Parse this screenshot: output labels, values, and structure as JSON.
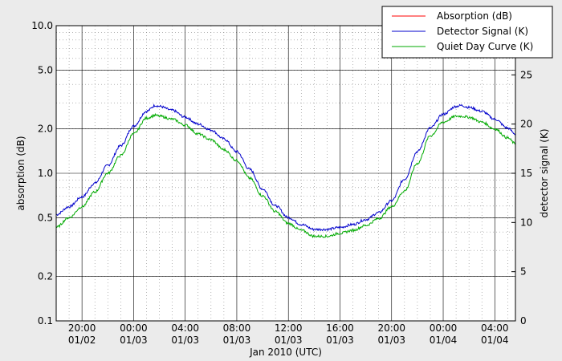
{
  "chart_data": {
    "type": "line",
    "xlabel": "Jan 2010 (UTC)",
    "ylabel_left": "absorption (dB)",
    "ylabel_right": "detector signal (K)",
    "x_ticks": [
      {
        "hour": 20,
        "time": "20:00",
        "date": "01/02"
      },
      {
        "hour": 24,
        "time": "00:00",
        "date": "01/03"
      },
      {
        "hour": 28,
        "time": "04:00",
        "date": "01/03"
      },
      {
        "hour": 32,
        "time": "08:00",
        "date": "01/03"
      },
      {
        "hour": 36,
        "time": "12:00",
        "date": "01/03"
      },
      {
        "hour": 40,
        "time": "16:00",
        "date": "01/03"
      },
      {
        "hour": 44,
        "time": "20:00",
        "date": "01/03"
      },
      {
        "hour": 48,
        "time": "00:00",
        "date": "01/04"
      },
      {
        "hour": 52,
        "time": "04:00",
        "date": "01/04"
      }
    ],
    "xlim_hours": [
      18,
      53.6
    ],
    "left_axis": {
      "scale": "log",
      "ylim": [
        0.1,
        10.0
      ],
      "ticks": [
        {
          "value": 0.1,
          "label": "0.1"
        },
        {
          "value": 0.2,
          "label": "0.2"
        },
        {
          "value": 0.5,
          "label": "0.5"
        },
        {
          "value": 1.0,
          "label": "1.0"
        },
        {
          "value": 2.0,
          "label": "2.0"
        },
        {
          "value": 5.0,
          "label": "5.0"
        },
        {
          "value": 10.0,
          "label": "10.0"
        }
      ]
    },
    "right_axis": {
      "scale": "linear",
      "ylim": [
        0,
        30
      ],
      "ticks": [
        {
          "value": 0,
          "label": "0"
        },
        {
          "value": 5,
          "label": "5"
        },
        {
          "value": 10,
          "label": "10"
        },
        {
          "value": 15,
          "label": "15"
        },
        {
          "value": 20,
          "label": "20"
        },
        {
          "value": 25,
          "label": "25"
        }
      ]
    },
    "grid": true,
    "legend_position": "top-right",
    "series": [
      {
        "name": "Absorption (dB)",
        "color": "#ff0000",
        "axis": "left",
        "x_hours": [],
        "values": []
      },
      {
        "name": "Detector Signal (K)",
        "color": "#0000cc",
        "axis": "right",
        "x_hours": [
          18,
          19,
          20,
          21,
          22,
          23,
          24,
          25,
          25.7,
          26,
          27,
          28,
          29,
          30,
          31,
          32,
          33,
          34,
          35,
          36,
          37,
          38,
          39,
          40,
          41,
          42,
          43,
          44,
          45,
          46,
          47,
          48,
          49,
          49.4,
          50,
          51,
          52,
          53,
          53.6
        ],
        "values": [
          10.8,
          11.6,
          12.6,
          14.0,
          15.8,
          17.8,
          19.8,
          21.3,
          21.9,
          21.8,
          21.4,
          20.7,
          20.0,
          19.4,
          18.5,
          17.2,
          15.4,
          13.4,
          11.7,
          10.5,
          9.8,
          9.3,
          9.3,
          9.5,
          9.8,
          10.3,
          11.0,
          12.2,
          14.4,
          17.2,
          19.6,
          21.0,
          21.8,
          21.9,
          21.7,
          21.3,
          20.5,
          19.6,
          19.0
        ]
      },
      {
        "name": "Quiet Day Curve (K)",
        "color": "#00aa00",
        "axis": "right",
        "x_hours": [
          18,
          19,
          20,
          21,
          22,
          23,
          24,
          25,
          25.7,
          26,
          27,
          28,
          29,
          30,
          31,
          32,
          33,
          34,
          35,
          36,
          37,
          38,
          39,
          40,
          41,
          42,
          43,
          44,
          45,
          46,
          47,
          48,
          49,
          49.4,
          50,
          51,
          52,
          53,
          53.6
        ],
        "values": [
          9.5,
          10.5,
          11.6,
          13.1,
          15.0,
          16.8,
          19.0,
          20.6,
          20.9,
          20.8,
          20.5,
          19.9,
          19.0,
          18.4,
          17.4,
          16.3,
          14.5,
          12.7,
          11.1,
          9.9,
          9.2,
          8.6,
          8.6,
          8.9,
          9.2,
          9.7,
          10.4,
          11.6,
          13.2,
          16.0,
          18.8,
          20.2,
          20.8,
          20.8,
          20.7,
          20.2,
          19.5,
          18.6,
          18.0
        ]
      }
    ]
  }
}
